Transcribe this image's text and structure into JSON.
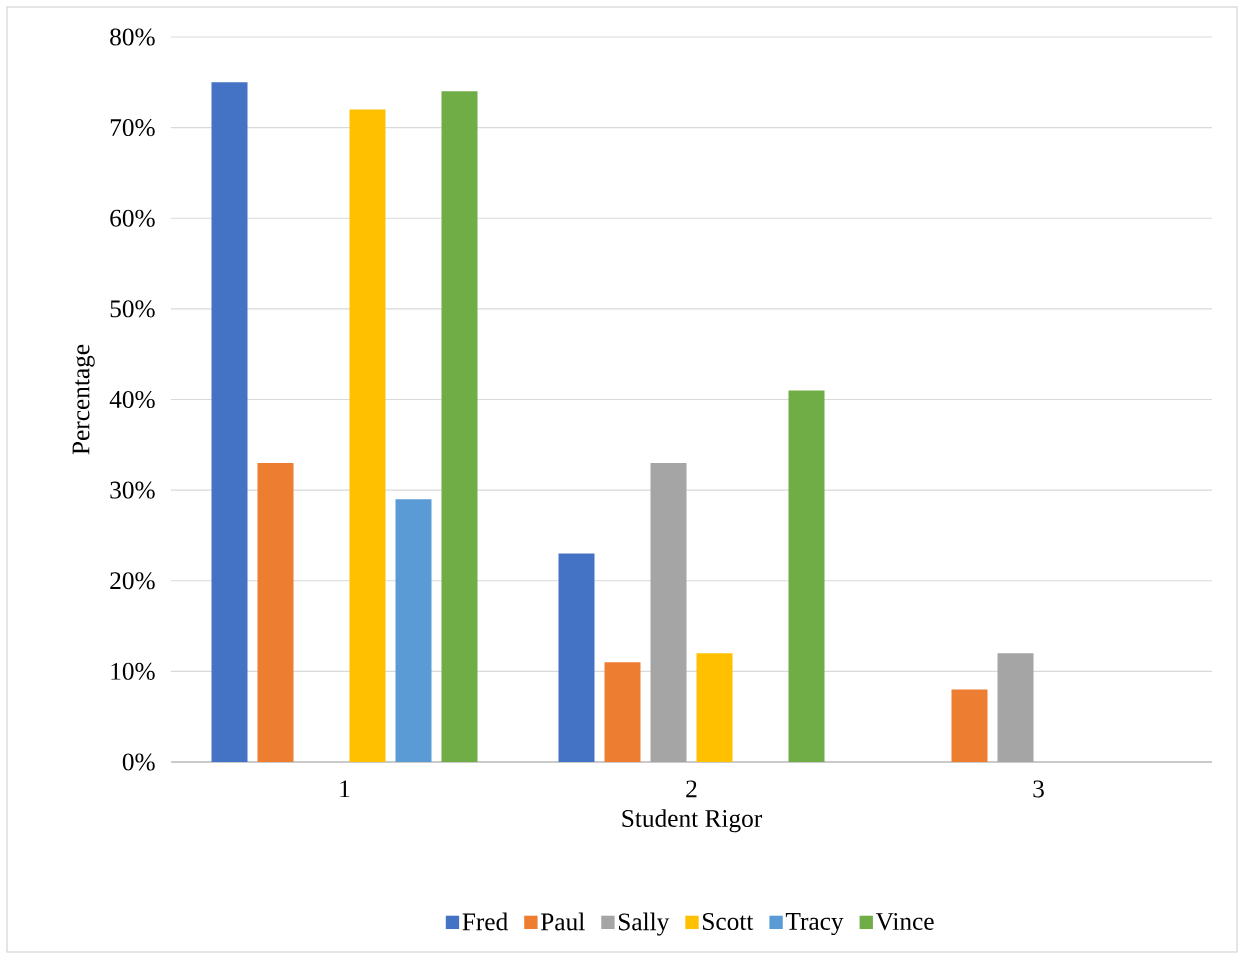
{
  "chart_data": {
    "type": "bar",
    "xlabel": "Student Rigor",
    "ylabel": "Percentage",
    "categories": [
      "1",
      "2",
      "3"
    ],
    "series": [
      {
        "name": "Fred",
        "color": "#4472c4",
        "values": [
          75,
          23,
          0
        ]
      },
      {
        "name": "Paul",
        "color": "#ed7d31",
        "values": [
          33,
          11,
          8
        ]
      },
      {
        "name": "Sally",
        "color": "#a5a5a5",
        "values": [
          0,
          33,
          12
        ]
      },
      {
        "name": "Scott",
        "color": "#ffc000",
        "values": [
          72,
          12,
          0
        ]
      },
      {
        "name": "Tracy",
        "color": "#5b9bd5",
        "values": [
          29,
          0,
          0
        ]
      },
      {
        "name": "Vince",
        "color": "#70ad47",
        "values": [
          74,
          41,
          0
        ]
      }
    ],
    "ylim": [
      0,
      80
    ],
    "yticks": [
      {
        "value": 0,
        "label": "0%"
      },
      {
        "value": 10,
        "label": "10%"
      },
      {
        "value": 20,
        "label": "20%"
      },
      {
        "value": 30,
        "label": "30%"
      },
      {
        "value": 40,
        "label": "40%"
      },
      {
        "value": 50,
        "label": "50%"
      },
      {
        "value": 60,
        "label": "60%"
      },
      {
        "value": 70,
        "label": "70%"
      },
      {
        "value": 80,
        "label": "80%"
      }
    ],
    "grid": "y",
    "legend": "bottom"
  }
}
